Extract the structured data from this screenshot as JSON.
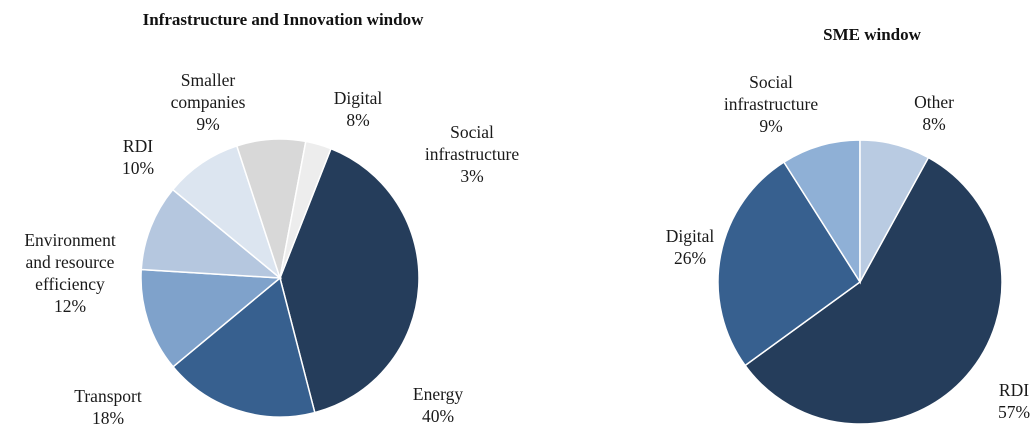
{
  "chart_data": [
    {
      "type": "pie",
      "title": "Infrastructure  and Innovation window",
      "slices": [
        {
          "label": [
            "Energy"
          ],
          "pct_label": "40%",
          "value": 40,
          "color": "#253d5b"
        },
        {
          "label": [
            "Transport"
          ],
          "pct_label": "18%",
          "value": 18,
          "color": "#37608f"
        },
        {
          "label": [
            "Environment",
            "and resource",
            "efficiency"
          ],
          "pct_label": "12%",
          "value": 12,
          "color": "#7fa2cb"
        },
        {
          "label": [
            "RDI"
          ],
          "pct_label": "10%",
          "value": 10,
          "color": "#b5c7df"
        },
        {
          "label": [
            "Smaller",
            "companies"
          ],
          "pct_label": "9%",
          "value": 9,
          "color": "#dce5f0"
        },
        {
          "label": [
            "Digital"
          ],
          "pct_label": "8%",
          "value": 8,
          "color": "#d8d8d8"
        },
        {
          "label": [
            "Social",
            "infrastructure"
          ],
          "pct_label": "3%",
          "value": 3,
          "color": "#ededed"
        }
      ]
    },
    {
      "type": "pie",
      "title": "SME window",
      "slices": [
        {
          "label": [
            "RDI"
          ],
          "pct_label": "57%",
          "value": 57,
          "color": "#253d5b"
        },
        {
          "label": [
            "Digital"
          ],
          "pct_label": "26%",
          "value": 26,
          "color": "#37608f"
        },
        {
          "label": [
            "Social",
            "infrastructure"
          ],
          "pct_label": "9%",
          "value": 9,
          "color": "#8fb0d6"
        },
        {
          "label": [
            "Other"
          ],
          "pct_label": "8%",
          "value": 8,
          "color": "#b9cbe2"
        }
      ]
    }
  ]
}
